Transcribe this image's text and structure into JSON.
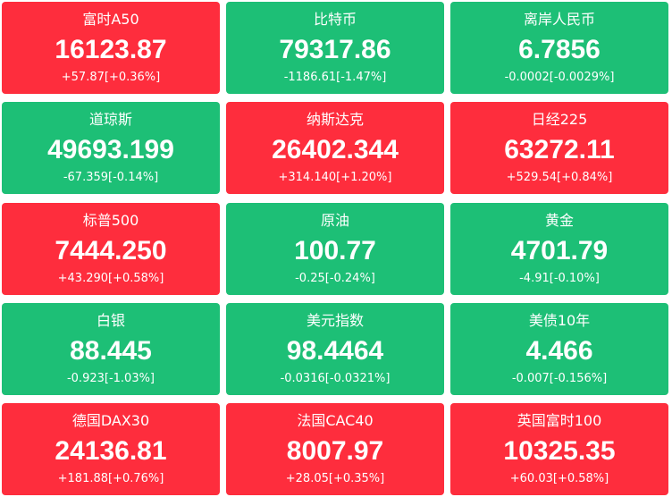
{
  "tiles": [
    {
      "name": "富时A50",
      "value": "16123.87",
      "change": "+57.87[+0.36%]",
      "color": "#fe2d3d"
    },
    {
      "name": "比特币",
      "value": "79317.86",
      "change": "-1186.61[-1.47%]",
      "color": "#1dbf76"
    },
    {
      "name": "离岸人民币",
      "value": "6.7856",
      "change": "-0.0002[-0.0029%]",
      "color": "#1dbf76"
    },
    {
      "name": "道琼斯",
      "value": "49693.199",
      "change": "-67.359[-0.14%]",
      "color": "#1dbf76"
    },
    {
      "name": "纳斯达克",
      "value": "26402.344",
      "change": "+314.140[+1.20%]",
      "color": "#fe2d3d"
    },
    {
      "name": "日经225",
      "value": "63272.11",
      "change": "+529.54[+0.84%]",
      "color": "#fe2d3d"
    },
    {
      "name": "标普500",
      "value": "7444.250",
      "change": "+43.290[+0.58%]",
      "color": "#fe2d3d"
    },
    {
      "name": "原油",
      "value": "100.77",
      "change": "-0.25[-0.24%]",
      "color": "#1dbf76"
    },
    {
      "name": "黄金",
      "value": "4701.79",
      "change": "-4.91[-0.10%]",
      "color": "#1dbf76"
    },
    {
      "name": "白银",
      "value": "88.445",
      "change": "-0.923[-1.03%]",
      "color": "#1dbf76"
    },
    {
      "name": "美元指数",
      "value": "98.4464",
      "change": "-0.0316[-0.0321%]",
      "color": "#1dbf76"
    },
    {
      "name": "美债10年",
      "value": "4.466",
      "change": "-0.007[-0.156%]",
      "color": "#1dbf76"
    },
    {
      "name": "德国DAX30",
      "value": "24136.81",
      "change": "+181.88[+0.76%]",
      "color": "#fe2d3d"
    },
    {
      "name": "法国CAC40",
      "value": "8007.97",
      "change": "+28.05[+0.35%]",
      "color": "#fe2d3d"
    },
    {
      "name": "英国富时100",
      "value": "10325.35",
      "change": "+60.03[+0.58%]",
      "color": "#fe2d3d"
    }
  ]
}
